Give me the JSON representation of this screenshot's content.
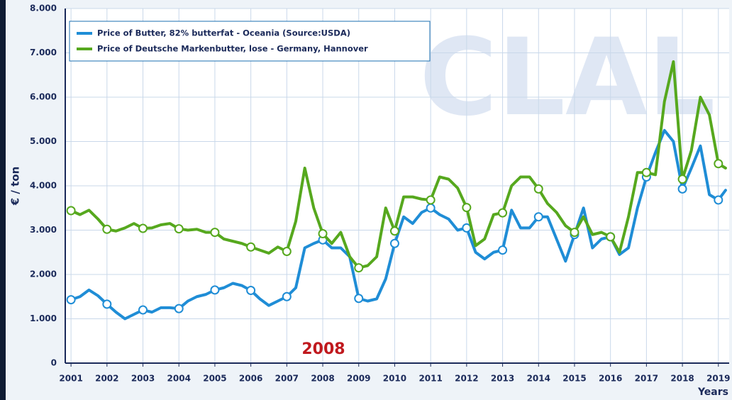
{
  "chart_data": {
    "type": "line",
    "watermark": "CLAL",
    "annotation": "2008",
    "y_label": "€ / ton",
    "x_label": "Years",
    "xlim": [
      2000.84,
      2019.3
    ],
    "xticks": [
      2001,
      2002,
      2003,
      2004,
      2005,
      2006,
      2007,
      2008,
      2009,
      2010,
      2011,
      2012,
      2013,
      2014,
      2015,
      2016,
      2017,
      2018,
      2019
    ],
    "ylim": [
      0,
      8000
    ],
    "yticks": [
      0,
      {
        "value": 1000,
        "label": "1.000"
      },
      {
        "value": 2000,
        "label": "2.000"
      },
      {
        "value": 3000,
        "label": "3.000"
      },
      {
        "value": 4000,
        "label": "4.000"
      },
      {
        "value": 5000,
        "label": "5.000"
      },
      {
        "value": 6000,
        "label": "6.000"
      },
      {
        "value": 7000,
        "label": "7.000"
      },
      {
        "value": 8000,
        "label": "8.000"
      }
    ],
    "grid": true,
    "legend": "top-left",
    "x": [
      2001,
      2001.25,
      2001.5,
      2001.75,
      2002,
      2002.25,
      2002.5,
      2002.75,
      2003,
      2003.25,
      2003.5,
      2003.75,
      2004,
      2004.25,
      2004.5,
      2004.75,
      2005,
      2005.25,
      2005.5,
      2005.75,
      2006,
      2006.25,
      2006.5,
      2006.75,
      2007,
      2007.25,
      2007.5,
      2007.75,
      2008,
      2008.25,
      2008.5,
      2008.75,
      2009,
      2009.25,
      2009.5,
      2009.75,
      2010,
      2010.25,
      2010.5,
      2010.75,
      2011,
      2011.25,
      2011.5,
      2011.75,
      2012,
      2012.25,
      2012.5,
      2012.75,
      2013,
      2013.25,
      2013.5,
      2013.75,
      2014,
      2014.25,
      2014.5,
      2014.75,
      2015,
      2015.25,
      2015.5,
      2015.75,
      2016,
      2016.25,
      2016.5,
      2016.75,
      2017,
      2017.25,
      2017.5,
      2017.75,
      2018,
      2018.25,
      2018.5,
      2018.75,
      2019,
      2019.2
    ],
    "series": [
      {
        "name": "Price of Butter, 82% butterfat - Oceania (Source:USDA)",
        "color": "#1f8dd6",
        "values": [
          1430,
          1500,
          1650,
          1520,
          1330,
          1150,
          1000,
          1100,
          1200,
          1150,
          1250,
          1250,
          1230,
          1400,
          1500,
          1550,
          1650,
          1700,
          1800,
          1750,
          1640,
          1450,
          1300,
          1400,
          1500,
          1700,
          2600,
          2700,
          2780,
          2600,
          2600,
          2400,
          1460,
          1400,
          1450,
          1900,
          2700,
          3300,
          3150,
          3400,
          3500,
          3350,
          3250,
          3000,
          3050,
          2500,
          2350,
          2500,
          2550,
          3450,
          3050,
          3050,
          3300,
          3300,
          2800,
          2300,
          2900,
          3500,
          2600,
          2800,
          2850,
          2450,
          2600,
          3500,
          4200,
          4750,
          5250,
          5000,
          3930,
          4400,
          4900,
          3800,
          3680,
          3900
        ]
      },
      {
        "name": "Price of Deutsche Markenbutter, lose - Germany, Hannover",
        "color": "#56a81e",
        "values": [
          3440,
          3350,
          3450,
          3250,
          3020,
          2980,
          3050,
          3150,
          3040,
          3050,
          3120,
          3150,
          3030,
          3000,
          3020,
          2950,
          2950,
          2800,
          2750,
          2700,
          2620,
          2550,
          2480,
          2620,
          2520,
          3200,
          4400,
          3500,
          2920,
          2700,
          2950,
          2400,
          2150,
          2200,
          2400,
          3500,
          2980,
          3750,
          3750,
          3700,
          3680,
          4200,
          4150,
          3950,
          3510,
          2650,
          2800,
          3350,
          3390,
          4000,
          4200,
          4200,
          3930,
          3600,
          3400,
          3100,
          2950,
          3300,
          2900,
          2950,
          2850,
          2500,
          3300,
          4300,
          4300,
          4250,
          5900,
          6800,
          4150,
          4800,
          6000,
          5600,
          4500,
          4400
        ]
      }
    ]
  }
}
